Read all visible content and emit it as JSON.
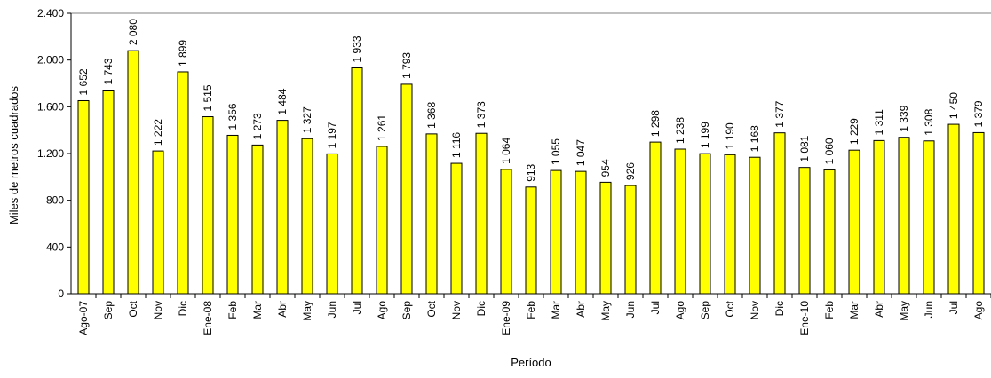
{
  "chart_data": {
    "type": "bar",
    "xlabel": "Período",
    "ylabel": "Miles de metros cuadrados",
    "ylim": [
      0,
      2400
    ],
    "yticks": [
      0,
      400,
      800,
      1200,
      1600,
      2000,
      2400
    ],
    "ytick_labels": [
      "0",
      "400",
      "800",
      "1.200",
      "1.600",
      "2.000",
      "2.400"
    ],
    "grid": false,
    "legend": "none",
    "bar_color": "#FFFF00",
    "bar_edge_color": "#000000",
    "categories": [
      "Ago-07",
      "Sep",
      "Oct",
      "Nov",
      "Dic",
      "Ene-08",
      "Feb",
      "Mar",
      "Abr",
      "May",
      "Jun",
      "Jul",
      "Ago",
      "Sep",
      "Oct",
      "Nov",
      "Dic",
      "Ene-09",
      "Feb",
      "Mar",
      "Abr",
      "May",
      "Jun",
      "Jul",
      "Ago",
      "Sep",
      "Oct",
      "Nov",
      "Dic",
      "Ene-10",
      "Feb",
      "Mar",
      "Abr",
      "May",
      "Jun",
      "Jul",
      "Ago"
    ],
    "values": [
      1652,
      1743,
      2080,
      1222,
      1899,
      1515,
      1356,
      1273,
      1484,
      1327,
      1197,
      1933,
      1261,
      1793,
      1368,
      1116,
      1373,
      1064,
      913,
      1055,
      1047,
      954,
      926,
      1298,
      1238,
      1199,
      1190,
      1168,
      1377,
      1081,
      1060,
      1229,
      1311,
      1339,
      1308,
      1450,
      1379
    ],
    "data_labels": [
      "1 652",
      "1 743",
      "2 080",
      "1 222",
      "1 899",
      "1 515",
      "1 356",
      "1 273",
      "1 484",
      "1 327",
      "1 197",
      "1 933",
      "1 261",
      "1 793",
      "1 368",
      "1 116",
      "1 373",
      "1 064",
      "913",
      "1 055",
      "1 047",
      "954",
      "926",
      "1 298",
      "1 238",
      "1 199",
      "1 190",
      "1 168",
      "1 377",
      "1 081",
      "1 060",
      "1 229",
      "1 311",
      "1 339",
      "1 308",
      "1 450",
      "1 379"
    ]
  }
}
